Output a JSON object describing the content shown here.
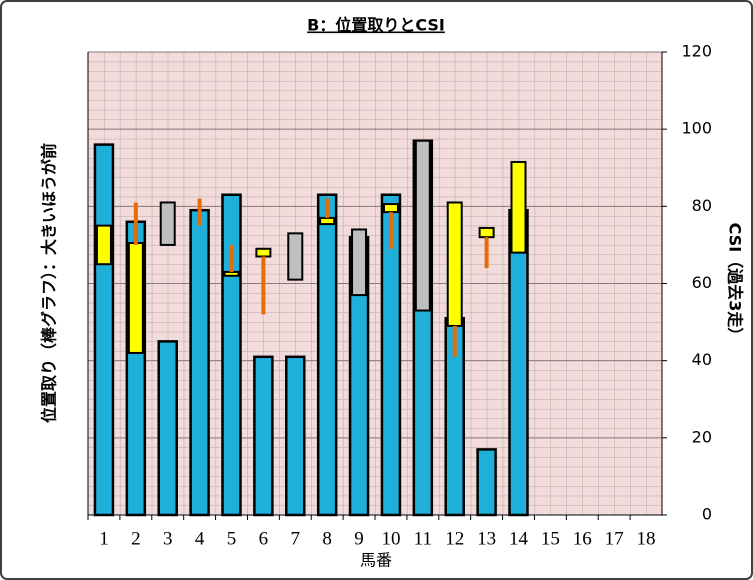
{
  "chart_data": {
    "type": "bar",
    "title": "B：位置取りとCSI",
    "y_label": "位置取り（棒グラフ）：大きいほうが前",
    "y2_label": "CSI（過去3走）",
    "x_label": "馬番",
    "categories": [
      "1",
      "2",
      "3",
      "4",
      "5",
      "6",
      "7",
      "8",
      "9",
      "10",
      "11",
      "12",
      "13",
      "14",
      "15",
      "16",
      "17",
      "18"
    ],
    "values": [
      96,
      76,
      45,
      79,
      83,
      41,
      41,
      83,
      72,
      83,
      97,
      51,
      17,
      79,
      0,
      0,
      0,
      0
    ],
    "color": "#1fb0da",
    "csi_boxes": [
      {
        "low": 65,
        "high": 75,
        "color": "#ffff00"
      },
      {
        "low": 42,
        "high": 70.5,
        "color": "#ffff00"
      },
      {
        "low": 70,
        "high": 81,
        "color": "#bfbfbf"
      },
      null,
      {
        "low": 62,
        "high": 63,
        "color": "#ffff00"
      },
      {
        "low": 67,
        "high": 69,
        "color": "#ffff00"
      },
      {
        "low": 61,
        "high": 73,
        "color": "#bfbfbf"
      },
      {
        "low": 75.4,
        "high": 77,
        "color": "#ffff00"
      },
      {
        "low": 57,
        "high": 74,
        "color": "#bfbfbf"
      },
      {
        "low": 78.5,
        "high": 80.6,
        "color": "#ffff00"
      },
      {
        "low": 53,
        "high": 97,
        "color": "#bfbfbf"
      },
      {
        "low": 49,
        "high": 81,
        "color": "#ffff00"
      },
      {
        "low": 72,
        "high": 74.4,
        "color": "#ffff00"
      },
      {
        "low": 68,
        "high": 91.5,
        "color": "#ffff00"
      },
      null,
      null,
      null,
      null
    ],
    "csi_ranges": [
      null,
      [
        70,
        81
      ],
      null,
      [
        75,
        82
      ],
      [
        63,
        70
      ],
      [
        52,
        67
      ],
      null,
      [
        77,
        82
      ],
      null,
      [
        69,
        78.5
      ],
      null,
      [
        41,
        49
      ],
      [
        64,
        72
      ],
      null,
      null,
      null,
      null,
      null
    ],
    "range_color": "#e46c0a",
    "ylim": [
      0,
      120
    ],
    "yticks": [
      0,
      20,
      40,
      60,
      80,
      100,
      120
    ],
    "grid": true
  }
}
